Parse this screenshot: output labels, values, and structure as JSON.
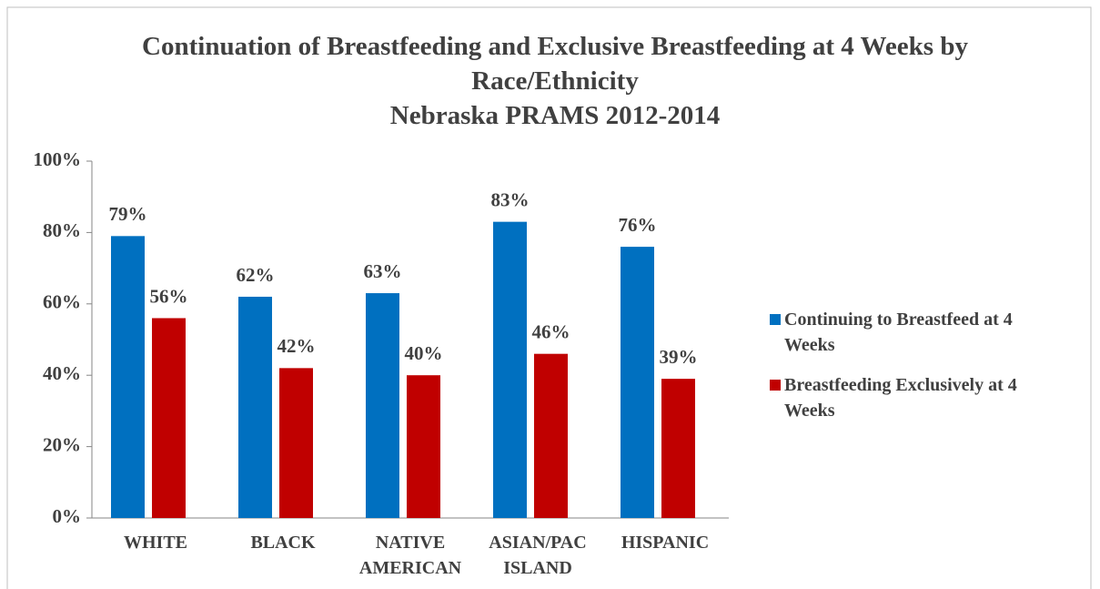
{
  "chart_data": {
    "type": "bar",
    "title": "Continuation of Breastfeeding and Exclusive Breastfeeding at 4 Weeks by Race/Ethnicity",
    "subtitle": "Nebraska PRAMS 2012-2014",
    "categories": [
      "WHITE",
      "BLACK",
      "NATIVE AMERICAN",
      "ASIAN/PAC ISLAND",
      "HISPANIC"
    ],
    "series": [
      {
        "name": "Continuing to Breastfeed at 4 Weeks",
        "color": "#0070c0",
        "values": [
          79,
          62,
          63,
          83,
          76
        ],
        "value_labels": [
          "79%",
          "62%",
          "63%",
          "83%",
          "76%"
        ]
      },
      {
        "name": "Breastfeeding Exclusively at 4 Weeks",
        "color": "#c00000",
        "values": [
          56,
          42,
          40,
          46,
          39
        ],
        "value_labels": [
          "56%",
          "42%",
          "40%",
          "46%",
          "39%"
        ]
      }
    ],
    "ylim": [
      0,
      100
    ],
    "yticks": [
      {
        "value": 0,
        "label": "0%"
      },
      {
        "value": 20,
        "label": "20%"
      },
      {
        "value": 40,
        "label": "40%"
      },
      {
        "value": 60,
        "label": "60%"
      },
      {
        "value": 80,
        "label": "80%"
      },
      {
        "value": 100,
        "label": "100%"
      }
    ],
    "legend": "right"
  }
}
